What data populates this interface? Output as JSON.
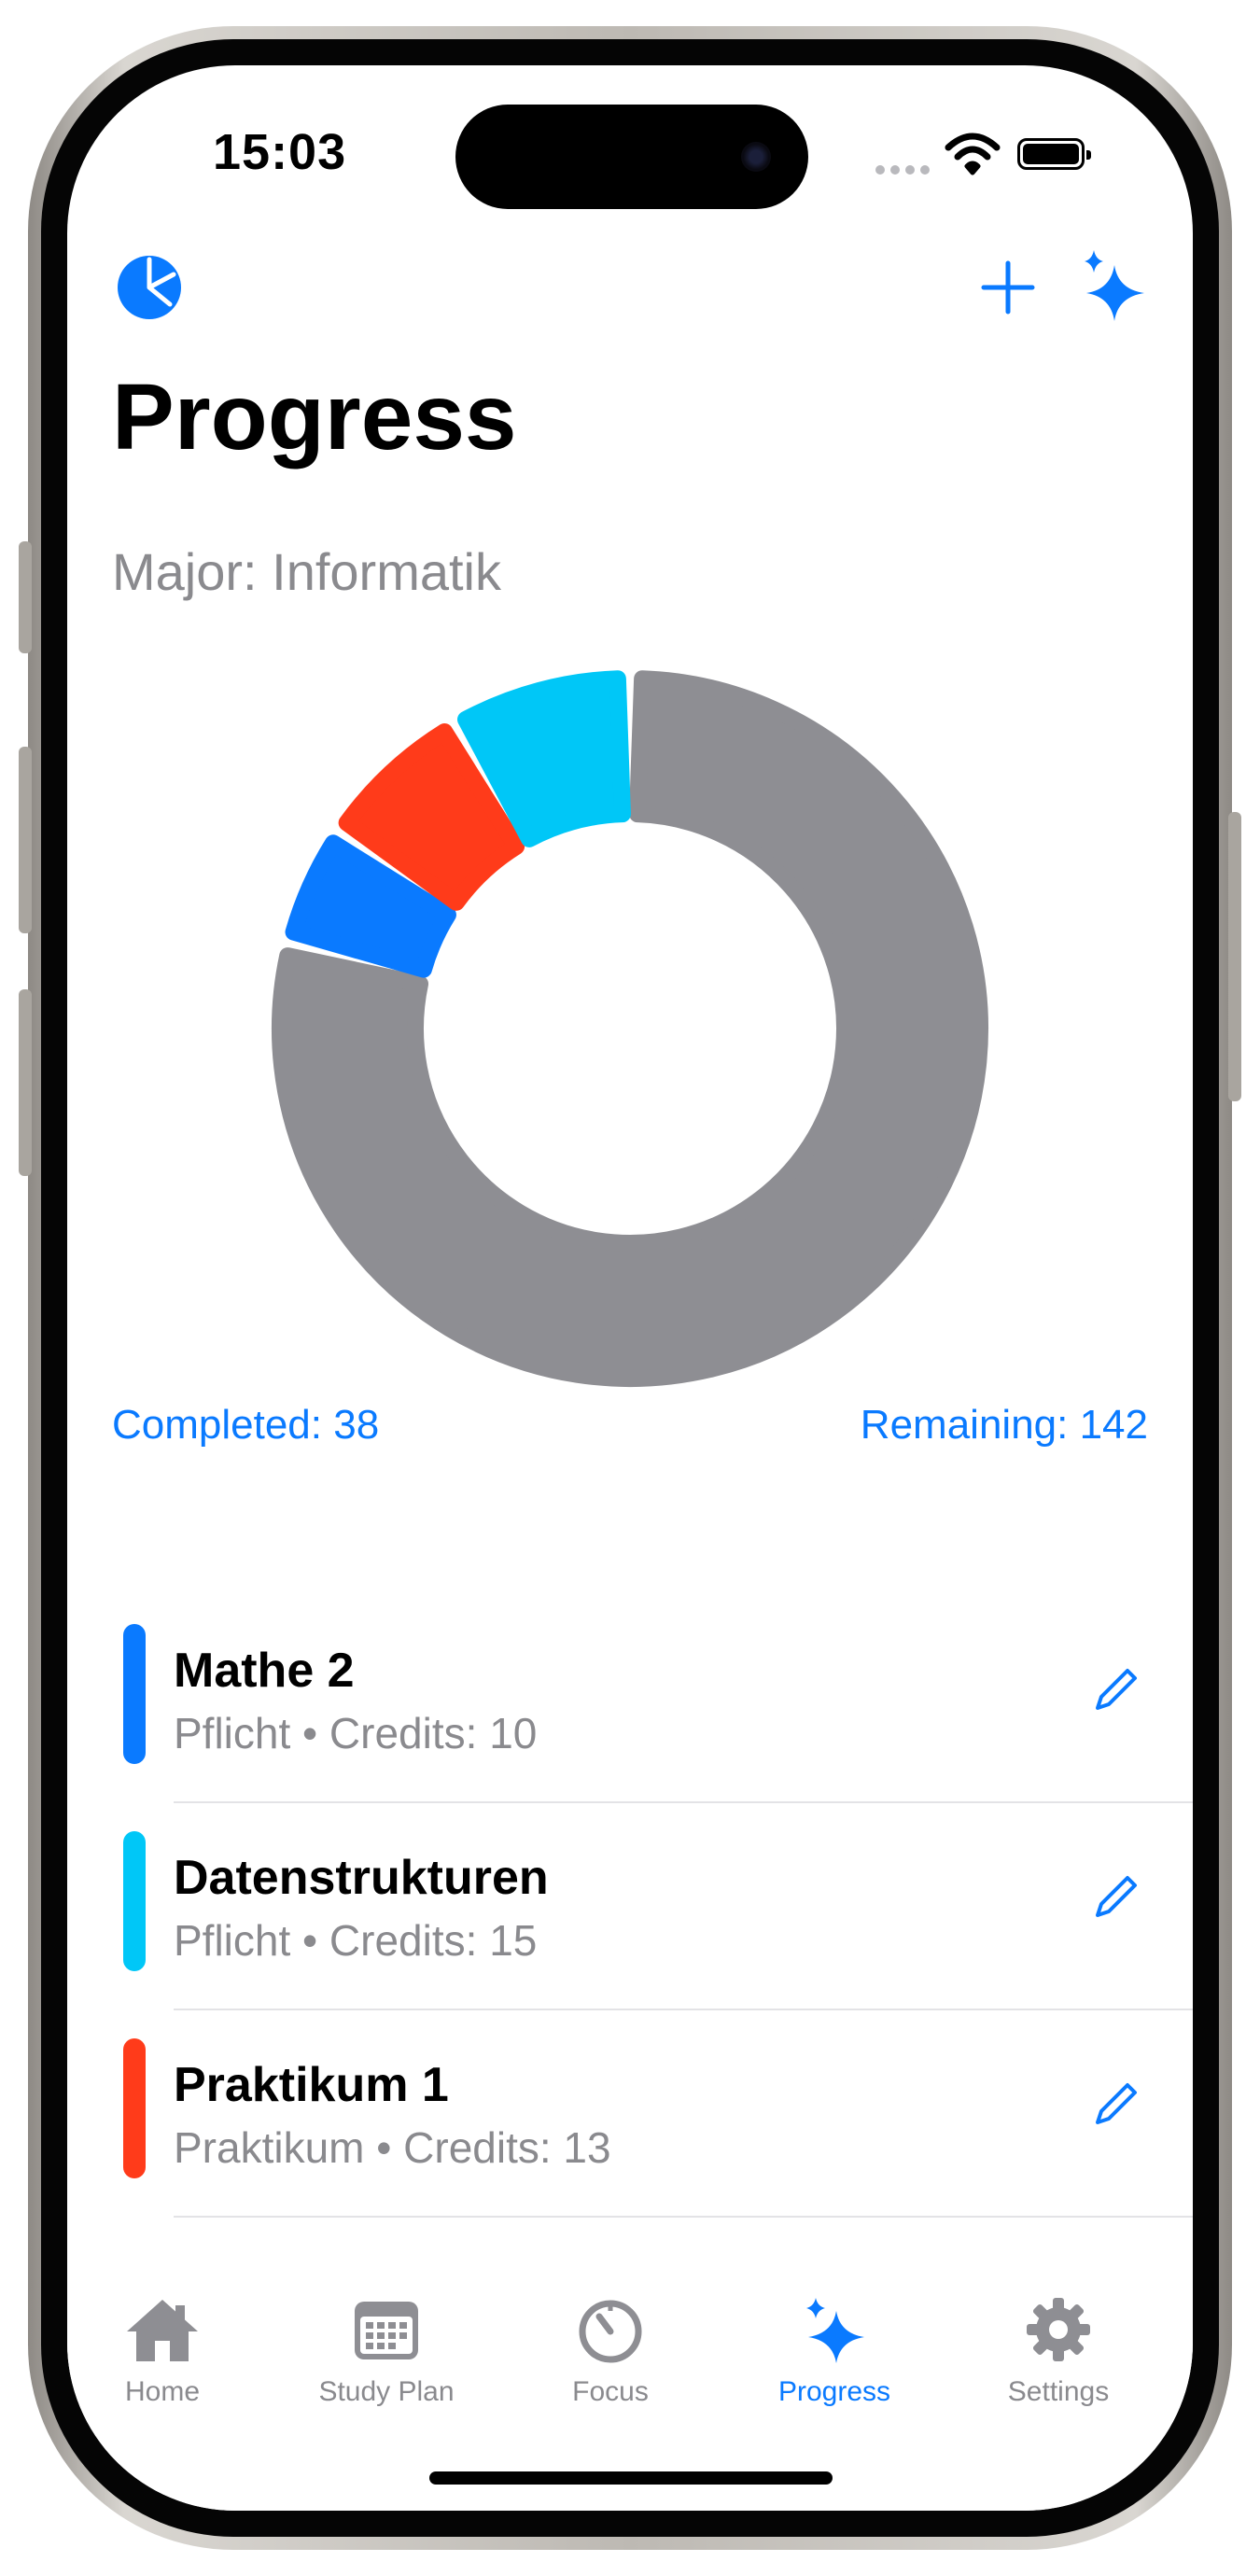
{
  "status": {
    "time": "15:03"
  },
  "header": {
    "title": "Progress",
    "major": "Major: Informatik"
  },
  "summary": {
    "completed": "Completed: 38",
    "remaining": "Remaining: 142"
  },
  "chart_data": {
    "type": "pie",
    "style": "donut",
    "segments": [
      {
        "category": "Mathe 2",
        "value": 10,
        "color": "#0a7aff"
      },
      {
        "category": "Datenstrukturen",
        "value": 15,
        "color": "#00c7f7"
      },
      {
        "category": "Praktikum 1",
        "value": 13,
        "color": "#ff3b1a"
      },
      {
        "category": "Remaining",
        "value": 142,
        "color": "#8e8e93"
      }
    ]
  },
  "courses": [
    {
      "name": "Mathe 2",
      "meta": "Pflicht • Credits: 10",
      "color": "#0a7aff"
    },
    {
      "name": "Datenstrukturen",
      "meta": "Pflicht • Credits: 15",
      "color": "#00c7f7"
    },
    {
      "name": "Praktikum 1",
      "meta": "Praktikum • Credits: 13",
      "color": "#ff3b1a"
    }
  ],
  "tabs": [
    {
      "label": "Home",
      "icon": "house-icon",
      "active": false
    },
    {
      "label": "Study Plan",
      "icon": "calendar-icon",
      "active": false
    },
    {
      "label": "Focus",
      "icon": "timer-icon",
      "active": false
    },
    {
      "label": "Progress",
      "icon": "sparkles-icon",
      "active": true
    },
    {
      "label": "Settings",
      "icon": "gear-icon",
      "active": false
    }
  ],
  "colors": {
    "accent": "#0a7aff",
    "secondary_text": "#8a8a8e"
  }
}
